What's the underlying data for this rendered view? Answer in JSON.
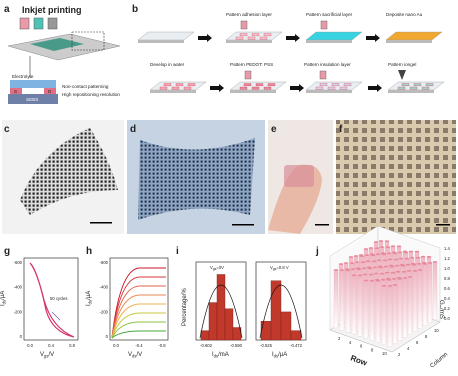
{
  "panels": {
    "a": {
      "label": "a",
      "title": "Inkjet printing",
      "electrolyte": "Electrolyte",
      "source": "S",
      "drain": "D",
      "substrate": "SEBS",
      "notes": [
        "Non-contact patterning",
        "High repositioning resolution"
      ]
    },
    "b": {
      "label": "b",
      "steps": [
        "Pattern adhesion layer",
        "Pattern sacrificial layer",
        "Deposite nano Au",
        "Develop in water",
        "Pattern PEDOT: PSS",
        "Pattern insulation layer",
        "Pattern iongel"
      ]
    },
    "c": {
      "label": "c"
    },
    "d": {
      "label": "d"
    },
    "e": {
      "label": "e"
    },
    "f": {
      "label": "f"
    },
    "g": {
      "label": "g",
      "y_label": [
        "I",
        "ds",
        "/μA"
      ],
      "x_label": [
        "V",
        "gs",
        "/V"
      ],
      "yticks": [
        "-600",
        "-400",
        "-200",
        "0"
      ],
      "xticks": [
        "0.0",
        "0.4",
        "0.8"
      ],
      "annotation": "50 cycles"
    },
    "h": {
      "label": "h",
      "y_label": [
        "I",
        "ds",
        "/μA"
      ],
      "x_label": [
        "V",
        "ds",
        "/V"
      ],
      "yticks": [
        "-600",
        "-400",
        "-200",
        "0"
      ],
      "xticks": [
        "0.0",
        "-0.4",
        "-0.8"
      ]
    },
    "i": {
      "label": "i",
      "y_label": "Percentage/%",
      "ylim": [
        0,
        50
      ],
      "left": {
        "annotation": [
          "V",
          "gs",
          "=0V"
        ],
        "x_label": [
          "I",
          "ds",
          "/mA"
        ],
        "xticks": [
          "-0.602",
          "-0.590"
        ],
        "values": [
          6,
          24,
          42,
          20,
          8
        ]
      },
      "right": {
        "annotation": [
          "V",
          "gs",
          "=0.8 V"
        ],
        "x_label": [
          "I",
          "ds",
          "/μA"
        ],
        "xticks": [
          "-0.525",
          "-0.472"
        ],
        "values": [
          12,
          38,
          18,
          6
        ]
      }
    },
    "j": {
      "label": "j",
      "z_label": [
        "G",
        "m",
        "/mS"
      ],
      "x_label": "Row",
      "y_label": "Column",
      "zticks": [
        "0.0",
        "0.2",
        "0.4",
        "0.6",
        "0.8",
        "1.0",
        "1.2",
        "1.4"
      ],
      "row_ticks": [
        "2",
        "4",
        "6",
        "8",
        "10"
      ],
      "column_ticks": [
        "2",
        "4",
        "6",
        "8",
        "10"
      ]
    }
  }
}
